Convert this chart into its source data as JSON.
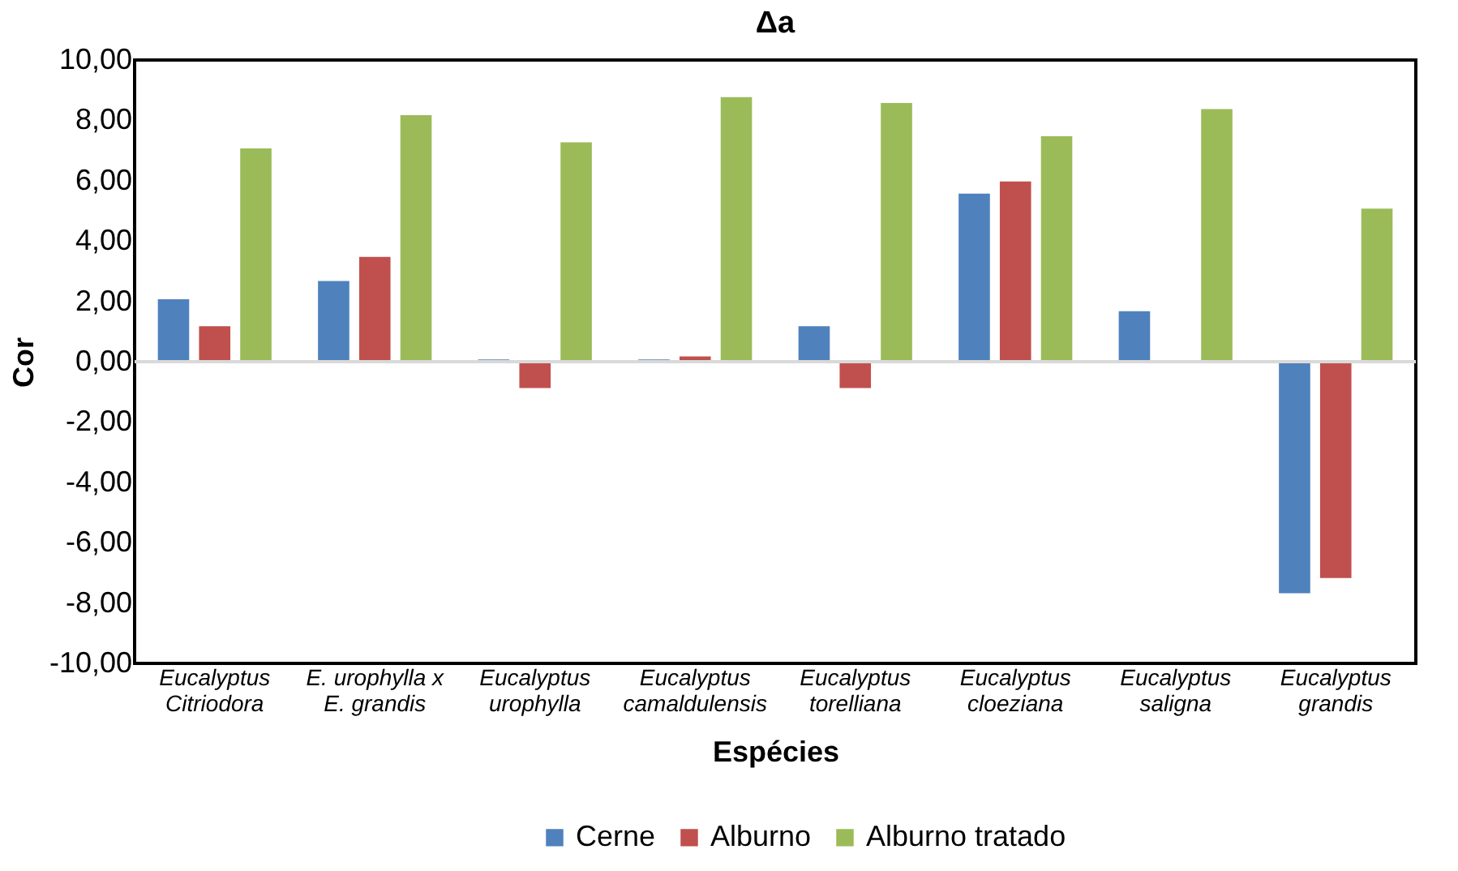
{
  "chart_data": {
    "type": "bar",
    "title": "Δa",
    "xlabel": "Espécies",
    "ylabel": "Cor",
    "categories": [
      "Eucalyptus\nCitriodora",
      "E. urophylla x\nE. grandis",
      "Eucalyptus\nurophylla",
      "Eucalyptus\ncamaldulensis",
      "Eucalyptus\ntorelliana",
      "Eucalyptus\ncloeziana",
      "Eucalyptus\nsaligna",
      "Eucalyptus\ngrandis"
    ],
    "series": [
      {
        "name": "Cerne",
        "color": "#4f81bd",
        "values": [
          2.1,
          2.7,
          0.1,
          0.1,
          1.2,
          5.6,
          1.7,
          -7.7
        ]
      },
      {
        "name": "Alburno",
        "color": "#c0504d",
        "values": [
          1.2,
          3.5,
          -0.9,
          0.2,
          -0.9,
          6.0,
          null,
          -7.2
        ]
      },
      {
        "name": "Alburno tratado",
        "color": "#9bbb59",
        "values": [
          7.1,
          8.2,
          7.3,
          8.8,
          8.6,
          7.5,
          8.4,
          5.1
        ]
      }
    ],
    "ylim": [
      -10,
      10
    ],
    "yticks": [
      {
        "value": -10,
        "label": "-10,00"
      },
      {
        "value": -8,
        "label": "-8,00"
      },
      {
        "value": -6,
        "label": "-6,00"
      },
      {
        "value": -4,
        "label": "-4,00"
      },
      {
        "value": -2,
        "label": "-2,00"
      },
      {
        "value": 0,
        "label": "0,00"
      },
      {
        "value": 2,
        "label": "2,00"
      },
      {
        "value": 4,
        "label": "4,00"
      },
      {
        "value": 6,
        "label": "6,00"
      },
      {
        "value": 8,
        "label": "8,00"
      },
      {
        "value": 10,
        "label": "10,00"
      }
    ],
    "ref_lines": [
      {
        "axis": "y",
        "value": 0,
        "color": "#d9d9d9"
      }
    ],
    "grid": false,
    "legend": "bottom"
  }
}
